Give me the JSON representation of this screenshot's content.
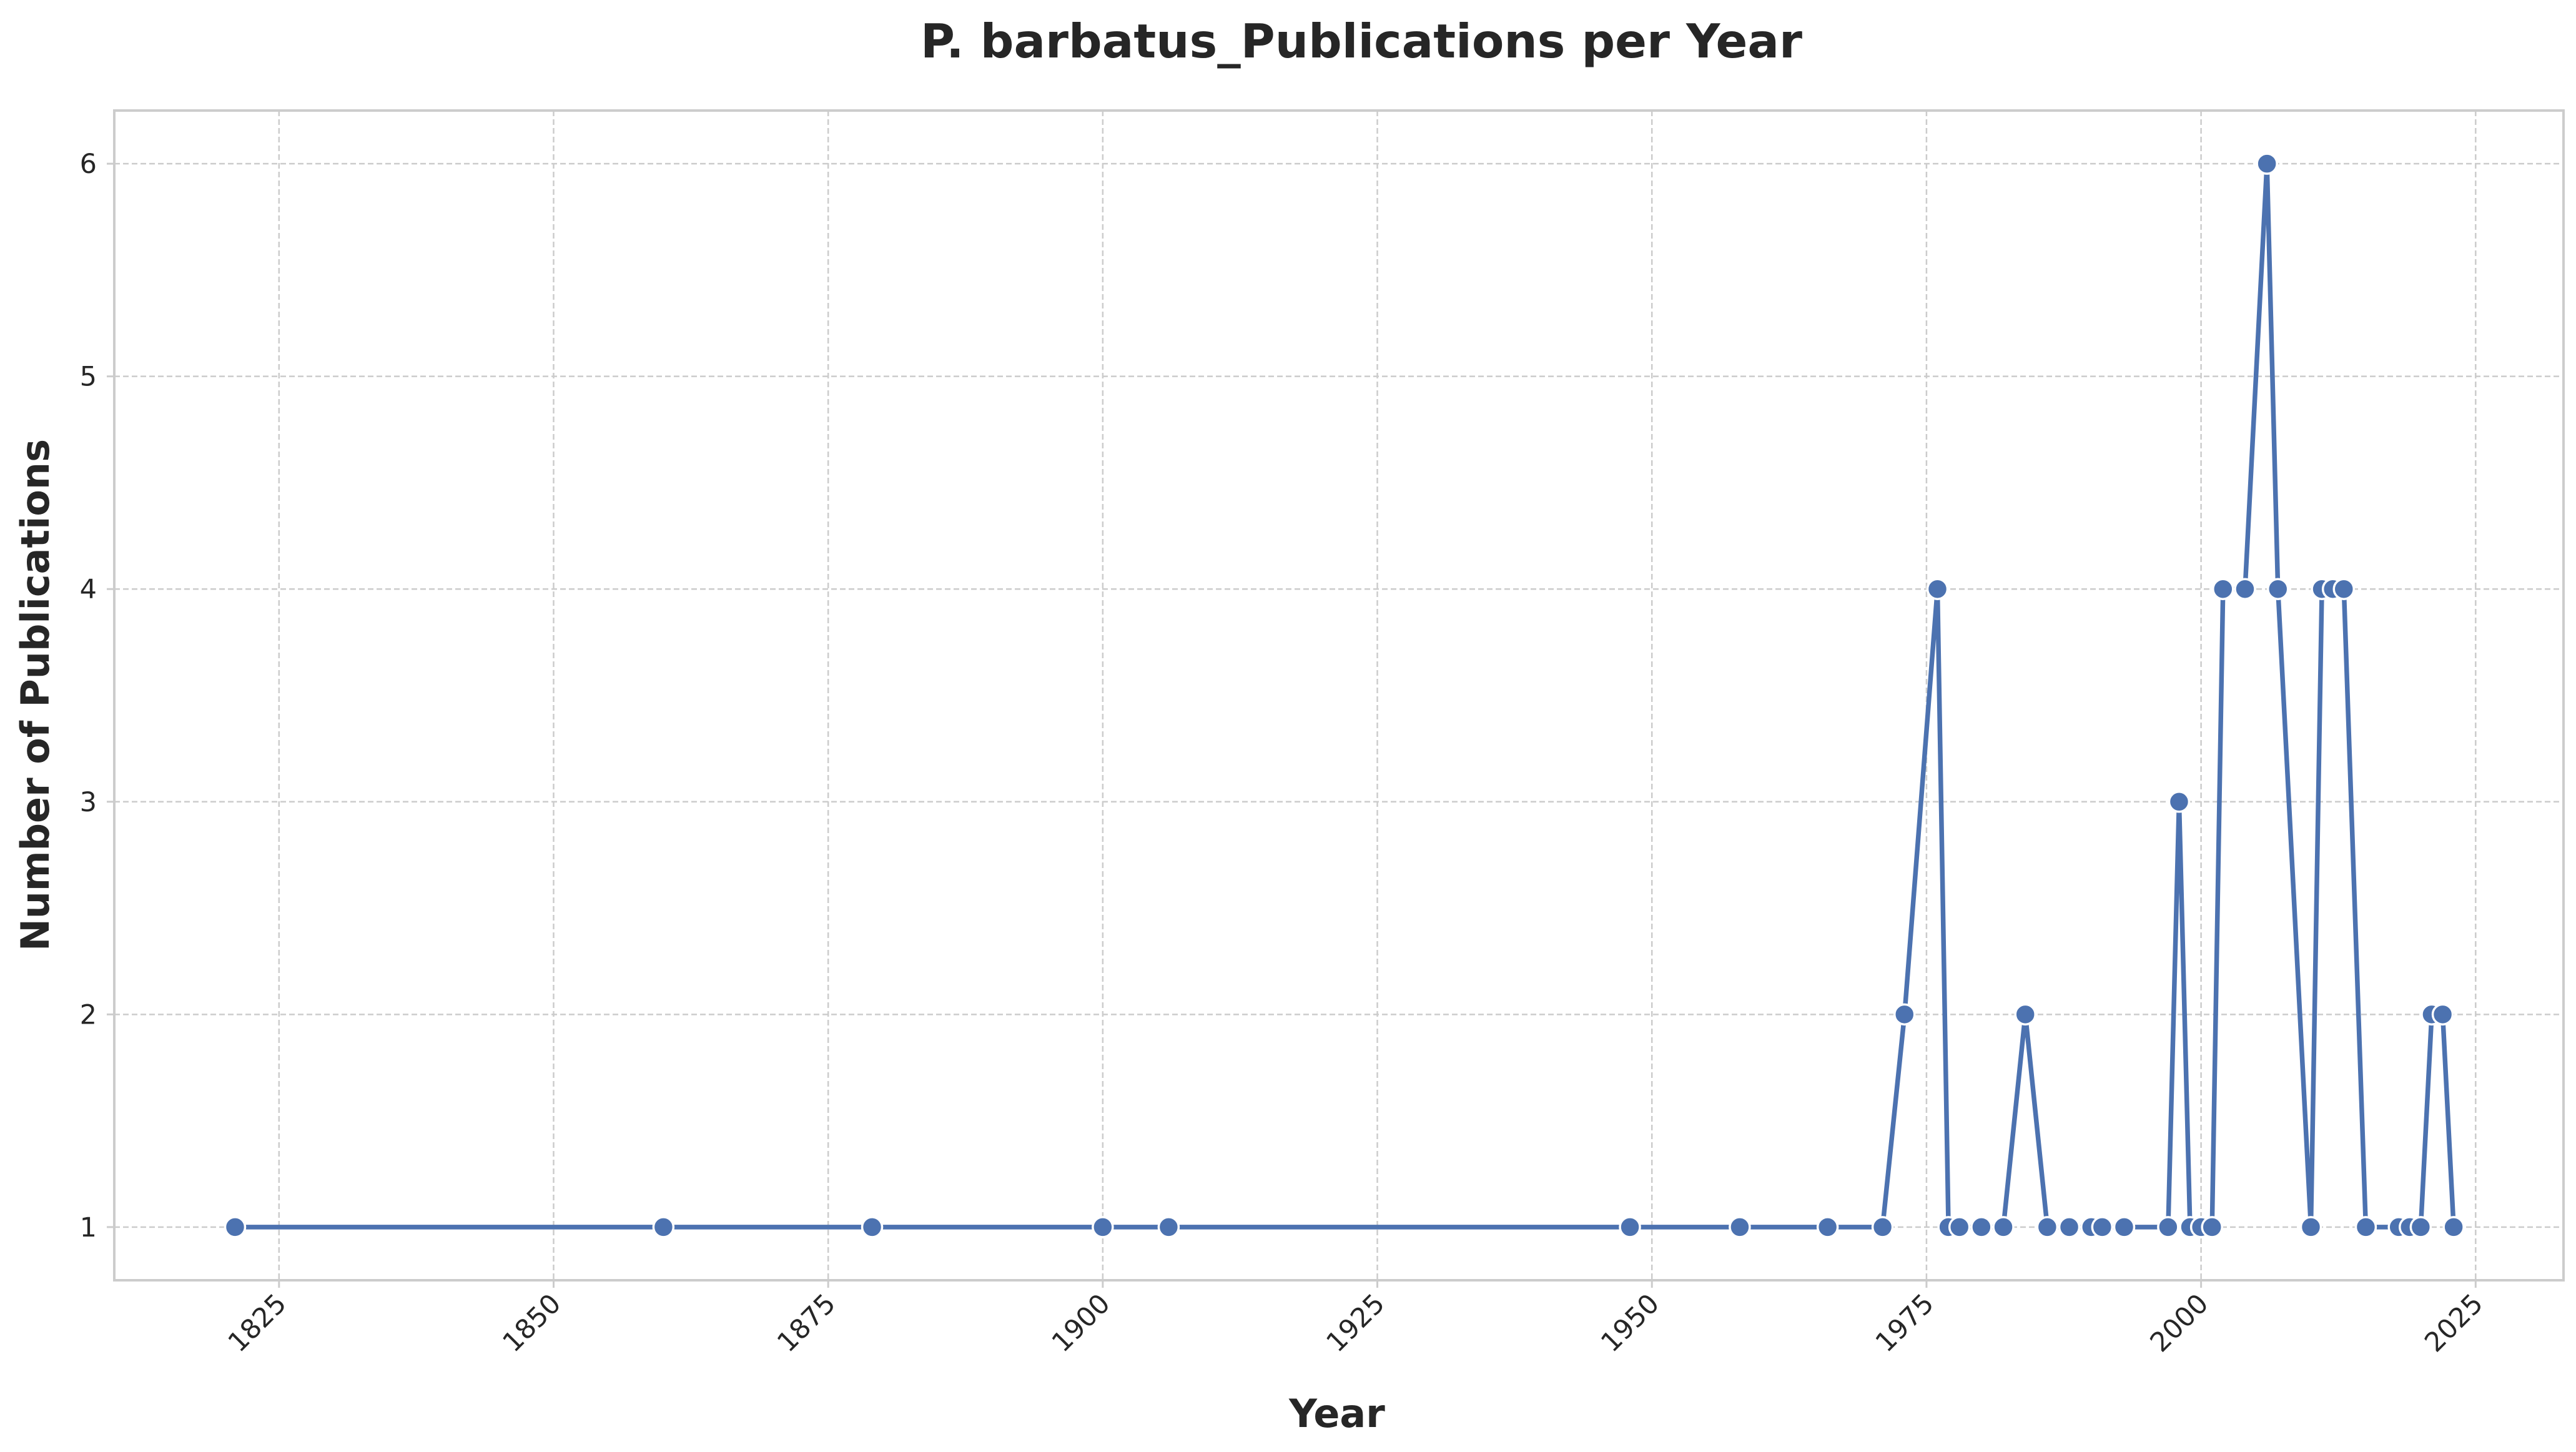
{
  "chart_data": {
    "type": "line",
    "title": "P. barbatus_Publications per Year",
    "xlabel": "Year",
    "ylabel": "Number of Publications",
    "xlim": [
      1810,
      2033
    ],
    "ylim": [
      0.75,
      6.25
    ],
    "x_ticks": [
      "1825",
      "1850",
      "1875",
      "1900",
      "1925",
      "1950",
      "1975",
      "2000",
      "2025"
    ],
    "y_ticks": [
      "1",
      "2",
      "3",
      "4",
      "5",
      "6"
    ],
    "grid": true,
    "legend": "none",
    "colors": {
      "series": "#4c72b0",
      "grid": "#cccccc",
      "frame": "#cccccc",
      "text": "#262626"
    },
    "series": [
      {
        "x": [
          1821,
          1860,
          1879,
          1900,
          1906,
          1948,
          1958,
          1966,
          1971,
          1973,
          1976,
          1977,
          1978,
          1980,
          1982,
          1984,
          1986,
          1988,
          1990,
          1991,
          1993,
          1997,
          1998,
          1999,
          2000,
          2001,
          2002,
          2004,
          2006,
          2007,
          2010,
          2011,
          2012,
          2013,
          2015,
          2018,
          2019,
          2020,
          2021,
          2022,
          2023
        ],
        "y": [
          1,
          1,
          1,
          1,
          1,
          1,
          1,
          1,
          1,
          2,
          4,
          1,
          1,
          1,
          1,
          2,
          1,
          1,
          1,
          1,
          1,
          1,
          3,
          1,
          1,
          1,
          4,
          4,
          6,
          4,
          1,
          4,
          4,
          4,
          1,
          1,
          1,
          1,
          2,
          2,
          1
        ]
      }
    ]
  }
}
